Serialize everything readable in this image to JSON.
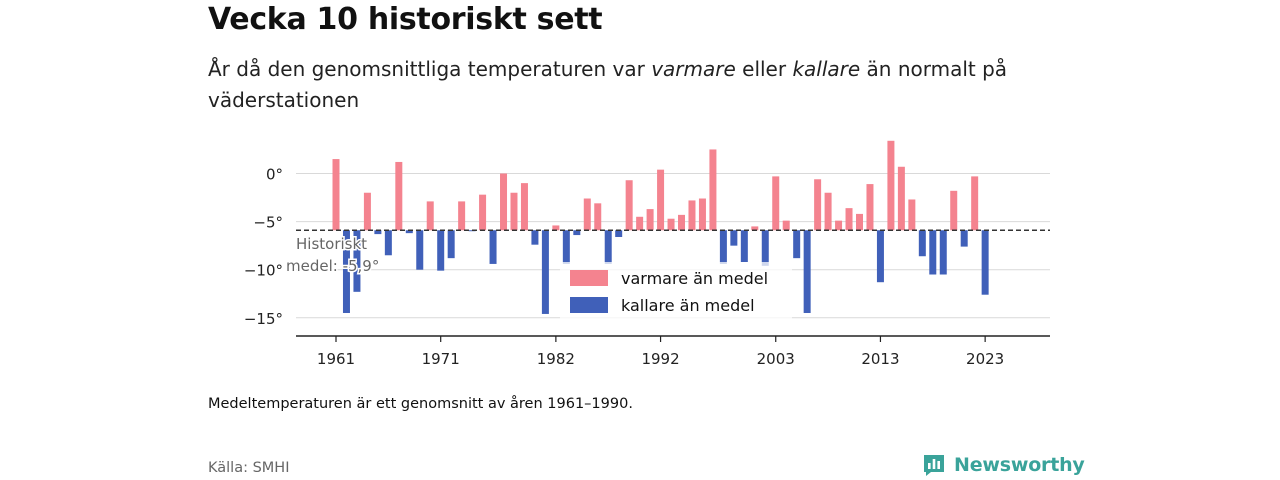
{
  "header": {
    "title": "Vecka 10 historiskt sett",
    "subtitle_pre": "År då den genomsnittliga temperaturen var ",
    "subtitle_warm": "varmare",
    "subtitle_mid": " eller ",
    "subtitle_cold": "kallare",
    "subtitle_post": " än normalt på väderstationen"
  },
  "footer": {
    "note": "Medeltemperaturen är ett genomsnitt av åren 1961–1990.",
    "source": "Källa: SMHI",
    "brand": "Newsworthy"
  },
  "colors": {
    "warm": "#f4838f",
    "cold": "#4060b9",
    "grid": "#d9d9d9",
    "axis": "#222222",
    "brand": "#3aa39a"
  },
  "chart_data": {
    "type": "bar",
    "baseline": -5.9,
    "baseline_label_line1": "Historiskt",
    "baseline_label_line2": "medel: -5,9°",
    "ylim": [
      -17,
      3.5
    ],
    "yticks": [
      0,
      -5,
      -10,
      -15
    ],
    "ytick_labels": [
      "0°",
      "−5°",
      "−10°",
      "−15°"
    ],
    "xticks": [
      1961,
      1971,
      1982,
      1992,
      2003,
      2013,
      2023
    ],
    "xtick_labels": [
      "1961",
      "1971",
      "1982",
      "1992",
      "2003",
      "2013",
      "2023"
    ],
    "legend": [
      {
        "label": "varmare än medel",
        "color": "#f4838f"
      },
      {
        "label": "kallare än medel",
        "color": "#4060b9"
      }
    ],
    "legend_position": "center",
    "grid": true,
    "x": [
      1961,
      1962,
      1963,
      1964,
      1965,
      1966,
      1967,
      1968,
      1969,
      1970,
      1971,
      1972,
      1973,
      1974,
      1975,
      1976,
      1977,
      1978,
      1979,
      1980,
      1981,
      1982,
      1983,
      1984,
      1985,
      1986,
      1987,
      1988,
      1989,
      1990,
      1991,
      1992,
      1993,
      1994,
      1995,
      1996,
      1997,
      1998,
      1999,
      2000,
      2001,
      2002,
      2003,
      2004,
      2005,
      2006,
      2007,
      2008,
      2009,
      2010,
      2011,
      2012,
      2013,
      2014,
      2015,
      2016,
      2017,
      2018,
      2019,
      2020,
      2021,
      2022,
      2023
    ],
    "values": [
      1.5,
      -14.5,
      -12.3,
      -2.0,
      -6.3,
      -8.5,
      1.2,
      -6.2,
      -10.0,
      -2.9,
      -10.1,
      -8.8,
      -2.9,
      -6.0,
      -2.2,
      -9.4,
      0.0,
      -2.0,
      -1.0,
      -7.4,
      -14.6,
      -5.4,
      -9.4,
      -6.4,
      -2.6,
      -3.1,
      -9.4,
      -6.6,
      -0.7,
      -4.5,
      -3.7,
      0.4,
      -4.7,
      -4.3,
      -2.8,
      -2.6,
      2.5,
      -9.4,
      -7.5,
      -9.2,
      -5.5,
      -9.6,
      -0.3,
      -4.9,
      -8.8,
      -14.5,
      -0.6,
      -2.0,
      -4.9,
      -3.6,
      -4.2,
      -1.1,
      -11.3,
      3.4,
      0.7,
      -2.7,
      -8.6,
      -10.5,
      -10.5,
      -1.8,
      -7.6,
      -0.3,
      -12.6
    ]
  }
}
